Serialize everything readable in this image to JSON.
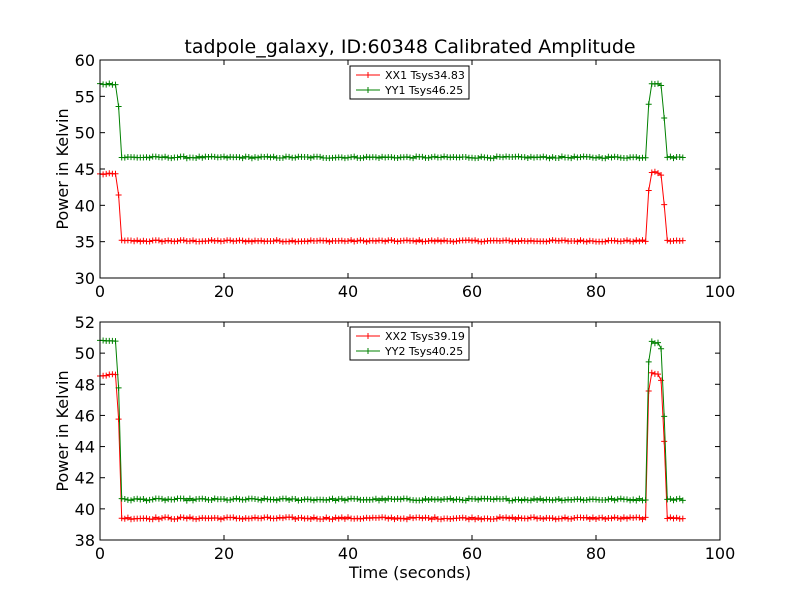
{
  "figure": {
    "title": "tadpole_galaxy, ID:60348 Calibrated Amplitude"
  },
  "chart_data": [
    {
      "type": "line",
      "title": "tadpole_galaxy, ID:60348 Calibrated Amplitude",
      "xlabel": "",
      "ylabel": "Power in Kelvin",
      "xlim": [
        0,
        100
      ],
      "ylim": [
        30,
        60
      ],
      "xticks": [
        0,
        20,
        40,
        60,
        80,
        100
      ],
      "yticks": [
        30,
        35,
        40,
        45,
        50,
        55,
        60
      ],
      "marker": "+",
      "legend": "top-center",
      "series": [
        {
          "name": "XX1 Tsys34.83",
          "color": "#ff0000",
          "base": 35.1,
          "high": 44.3,
          "noise": 0.12,
          "profile": [
            [
              0,
              44.3
            ],
            [
              2.7,
              44.3
            ],
            [
              3.0,
              41.5
            ],
            [
              3.3,
              35.1
            ],
            [
              88.0,
              35.1
            ],
            [
              88.6,
              43.5
            ],
            [
              89.0,
              44.5
            ],
            [
              90.3,
              44.5
            ],
            [
              90.8,
              43.5
            ],
            [
              91.3,
              35.1
            ],
            [
              94.0,
              35.1
            ]
          ]
        },
        {
          "name": "YY1 Tsys46.25",
          "color": "#008000",
          "base": 46.6,
          "high": 56.7,
          "noise": 0.12,
          "profile": [
            [
              0,
              56.7
            ],
            [
              2.7,
              56.7
            ],
            [
              3.0,
              53.6
            ],
            [
              3.3,
              46.6
            ],
            [
              88.0,
              46.6
            ],
            [
              88.6,
              55.5
            ],
            [
              89.0,
              56.8
            ],
            [
              90.3,
              56.8
            ],
            [
              90.8,
              55.8
            ],
            [
              91.3,
              46.6
            ],
            [
              94.0,
              46.6
            ]
          ]
        }
      ]
    },
    {
      "type": "line",
      "title": "",
      "xlabel": "Time (seconds)",
      "ylabel": "Power in Kelvin",
      "xlim": [
        0,
        100
      ],
      "ylim": [
        38,
        52
      ],
      "xticks": [
        0,
        20,
        40,
        60,
        80,
        100
      ],
      "yticks": [
        38,
        40,
        42,
        44,
        46,
        48,
        50,
        52
      ],
      "marker": "+",
      "legend": "top-center",
      "series": [
        {
          "name": "XX2 Tsys39.19",
          "color": "#ff0000",
          "base": 39.4,
          "high": 48.6,
          "noise": 0.07,
          "profile": [
            [
              0,
              48.6
            ],
            [
              2.7,
              48.6
            ],
            [
              3.0,
              45.8
            ],
            [
              3.3,
              39.4
            ],
            [
              88.0,
              39.4
            ],
            [
              88.5,
              47.5
            ],
            [
              89.0,
              48.7
            ],
            [
              90.3,
              48.7
            ],
            [
              90.8,
              47.7
            ],
            [
              91.3,
              39.4
            ],
            [
              94.0,
              39.4
            ]
          ]
        },
        {
          "name": "YY2 Tsys40.25",
          "color": "#008000",
          "base": 40.6,
          "high": 50.8,
          "noise": 0.07,
          "profile": [
            [
              0,
              50.8
            ],
            [
              2.7,
              50.8
            ],
            [
              3.0,
              47.8
            ],
            [
              3.3,
              40.6
            ],
            [
              88.0,
              40.6
            ],
            [
              88.5,
              49.5
            ],
            [
              89.0,
              50.7
            ],
            [
              90.3,
              50.7
            ],
            [
              90.8,
              49.6
            ],
            [
              91.3,
              40.6
            ],
            [
              94.0,
              40.6
            ]
          ]
        }
      ]
    }
  ]
}
